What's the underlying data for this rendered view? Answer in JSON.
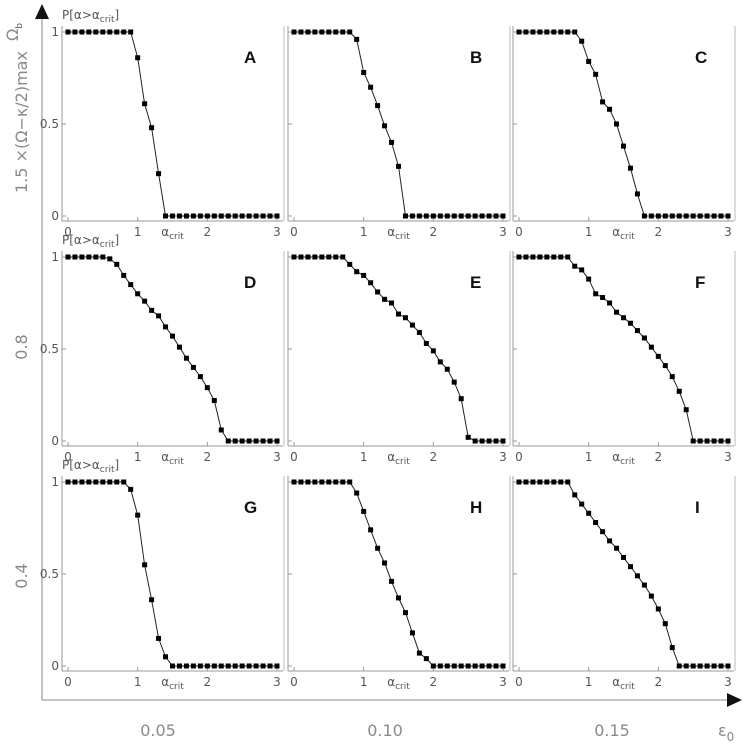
{
  "figure": {
    "outer_x_label": "ε",
    "outer_x_sub": "0",
    "outer_y_label": "Ω",
    "outer_y_sub": "b",
    "outer_x_ticks": [
      "0.05",
      "0.10",
      "0.15"
    ],
    "outer_y_ticks": [
      "1.5 ×(Ω−κ/2)max",
      "0.8",
      "0.4"
    ],
    "panel_x_label": "α",
    "panel_x_sub": "crit",
    "panel_y_label": "P[α>α",
    "panel_y_sub": "crit",
    "panel_y_close": "]",
    "panel_x_ticks": [
      "0",
      "1",
      "2",
      "3"
    ],
    "panel_y_ticks": [
      "0",
      "0.5",
      "1"
    ]
  },
  "chart_data": [
    {
      "type": "line",
      "panel": "A",
      "x": [
        0,
        0.1,
        0.2,
        0.3,
        0.4,
        0.5,
        0.6,
        0.7,
        0.8,
        0.9,
        1.0,
        1.1,
        1.2,
        1.3,
        1.4,
        1.5,
        1.6,
        1.7,
        1.8,
        1.9,
        2.0,
        2.1,
        2.2,
        2.3,
        2.4,
        2.5,
        2.6,
        2.7,
        2.8,
        2.9,
        3.0
      ],
      "y": [
        1,
        1,
        1,
        1,
        1,
        1,
        1,
        1,
        1,
        1,
        0.86,
        0.61,
        0.48,
        0.23,
        0,
        0,
        0,
        0,
        0,
        0,
        0,
        0,
        0,
        0,
        0,
        0,
        0,
        0,
        0,
        0,
        0
      ],
      "xlim": [
        0,
        3
      ],
      "ylim": [
        0,
        1
      ],
      "xlabel": "α_crit",
      "ylabel": "P[α>α_crit]",
      "outer_y_value": "1.5 ×(Ω−κ/2)max",
      "outer_x_value": "0.05"
    },
    {
      "type": "line",
      "panel": "B",
      "x": [
        0,
        0.1,
        0.2,
        0.3,
        0.4,
        0.5,
        0.6,
        0.7,
        0.8,
        0.9,
        1.0,
        1.1,
        1.2,
        1.3,
        1.4,
        1.5,
        1.6,
        1.7,
        1.8,
        1.9,
        2.0,
        2.1,
        2.2,
        2.3,
        2.4,
        2.5,
        2.6,
        2.7,
        2.8,
        2.9,
        3.0
      ],
      "y": [
        1,
        1,
        1,
        1,
        1,
        1,
        1,
        1,
        1,
        0.96,
        0.78,
        0.7,
        0.6,
        0.49,
        0.4,
        0.27,
        0,
        0,
        0,
        0,
        0,
        0,
        0,
        0,
        0,
        0,
        0,
        0,
        0,
        0,
        0
      ],
      "xlim": [
        0,
        3
      ],
      "ylim": [
        0,
        1
      ],
      "xlabel": "α_crit",
      "outer_x_value": "0.10"
    },
    {
      "type": "line",
      "panel": "C",
      "x": [
        0,
        0.1,
        0.2,
        0.3,
        0.4,
        0.5,
        0.6,
        0.7,
        0.8,
        0.9,
        1.0,
        1.1,
        1.2,
        1.3,
        1.4,
        1.5,
        1.6,
        1.7,
        1.8,
        1.9,
        2.0,
        2.1,
        2.2,
        2.3,
        2.4,
        2.5,
        2.6,
        2.7,
        2.8,
        2.9,
        3.0
      ],
      "y": [
        1,
        1,
        1,
        1,
        1,
        1,
        1,
        1,
        1,
        0.95,
        0.84,
        0.77,
        0.62,
        0.58,
        0.5,
        0.38,
        0.26,
        0.12,
        0,
        0,
        0,
        0,
        0,
        0,
        0,
        0,
        0,
        0,
        0,
        0,
        0
      ],
      "xlim": [
        0,
        3
      ],
      "ylim": [
        0,
        1
      ],
      "xlabel": "α_crit",
      "outer_x_value": "0.15"
    },
    {
      "type": "line",
      "panel": "D",
      "x": [
        0,
        0.1,
        0.2,
        0.3,
        0.4,
        0.5,
        0.6,
        0.7,
        0.8,
        0.9,
        1.0,
        1.1,
        1.2,
        1.3,
        1.4,
        1.5,
        1.6,
        1.7,
        1.8,
        1.9,
        2.0,
        2.1,
        2.2,
        2.3,
        2.4,
        2.5,
        2.6,
        2.7,
        2.8,
        2.9,
        3.0
      ],
      "y": [
        1,
        1,
        1,
        1,
        1,
        1,
        0.99,
        0.96,
        0.9,
        0.85,
        0.8,
        0.76,
        0.71,
        0.68,
        0.62,
        0.57,
        0.51,
        0.45,
        0.4,
        0.35,
        0.29,
        0.22,
        0.06,
        0,
        0,
        0,
        0,
        0,
        0,
        0,
        0
      ],
      "xlim": [
        0,
        3
      ],
      "ylim": [
        0,
        1
      ],
      "xlabel": "α_crit",
      "ylabel": "P[α>α_crit]",
      "outer_y_value": "0.8"
    },
    {
      "type": "line",
      "panel": "E",
      "x": [
        0,
        0.1,
        0.2,
        0.3,
        0.4,
        0.5,
        0.6,
        0.7,
        0.8,
        0.9,
        1.0,
        1.1,
        1.2,
        1.3,
        1.4,
        1.5,
        1.6,
        1.7,
        1.8,
        1.9,
        2.0,
        2.1,
        2.2,
        2.3,
        2.4,
        2.5,
        2.6,
        2.7,
        2.8,
        2.9,
        3.0
      ],
      "y": [
        1,
        1,
        1,
        1,
        1,
        1,
        1,
        1,
        0.96,
        0.92,
        0.9,
        0.86,
        0.81,
        0.77,
        0.75,
        0.69,
        0.67,
        0.63,
        0.59,
        0.53,
        0.49,
        0.43,
        0.39,
        0.32,
        0.23,
        0.02,
        0,
        0,
        0,
        0,
        0
      ],
      "xlim": [
        0,
        3
      ],
      "ylim": [
        0,
        1
      ],
      "xlabel": "α_crit"
    },
    {
      "type": "line",
      "panel": "F",
      "x": [
        0,
        0.1,
        0.2,
        0.3,
        0.4,
        0.5,
        0.6,
        0.7,
        0.8,
        0.9,
        1.0,
        1.1,
        1.2,
        1.3,
        1.4,
        1.5,
        1.6,
        1.7,
        1.8,
        1.9,
        2.0,
        2.1,
        2.2,
        2.3,
        2.4,
        2.5,
        2.6,
        2.7,
        2.8,
        2.9,
        3.0
      ],
      "y": [
        1,
        1,
        1,
        1,
        1,
        1,
        1,
        1,
        0.95,
        0.93,
        0.88,
        0.8,
        0.78,
        0.75,
        0.7,
        0.67,
        0.64,
        0.6,
        0.56,
        0.51,
        0.46,
        0.41,
        0.35,
        0.27,
        0.17,
        0,
        0,
        0,
        0,
        0,
        0
      ],
      "xlim": [
        0,
        3
      ],
      "ylim": [
        0,
        1
      ],
      "xlabel": "α_crit"
    },
    {
      "type": "line",
      "panel": "G",
      "x": [
        0,
        0.1,
        0.2,
        0.3,
        0.4,
        0.5,
        0.6,
        0.7,
        0.8,
        0.9,
        1.0,
        1.1,
        1.2,
        1.3,
        1.4,
        1.5,
        1.6,
        1.7,
        1.8,
        1.9,
        2.0,
        2.1,
        2.2,
        2.3,
        2.4,
        2.5,
        2.6,
        2.7,
        2.8,
        2.9,
        3.0
      ],
      "y": [
        1,
        1,
        1,
        1,
        1,
        1,
        1,
        1,
        1,
        0.96,
        0.82,
        0.55,
        0.36,
        0.15,
        0.05,
        0,
        0,
        0,
        0,
        0,
        0,
        0,
        0,
        0,
        0,
        0,
        0,
        0,
        0,
        0,
        0
      ],
      "xlim": [
        0,
        3
      ],
      "ylim": [
        0,
        1
      ],
      "xlabel": "α_crit",
      "ylabel": "P[α>α_crit]",
      "outer_y_value": "0.4"
    },
    {
      "type": "line",
      "panel": "H",
      "x": [
        0,
        0.1,
        0.2,
        0.3,
        0.4,
        0.5,
        0.6,
        0.7,
        0.8,
        0.9,
        1.0,
        1.1,
        1.2,
        1.3,
        1.4,
        1.5,
        1.6,
        1.7,
        1.8,
        1.9,
        2.0,
        2.1,
        2.2,
        2.3,
        2.4,
        2.5,
        2.6,
        2.7,
        2.8,
        2.9,
        3.0
      ],
      "y": [
        1,
        1,
        1,
        1,
        1,
        1,
        1,
        1,
        1,
        0.94,
        0.84,
        0.74,
        0.64,
        0.56,
        0.46,
        0.37,
        0.29,
        0.18,
        0.07,
        0.04,
        0,
        0,
        0,
        0,
        0,
        0,
        0,
        0,
        0,
        0,
        0
      ],
      "xlim": [
        0,
        3
      ],
      "ylim": [
        0,
        1
      ],
      "xlabel": "α_crit"
    },
    {
      "type": "line",
      "panel": "I",
      "x": [
        0,
        0.1,
        0.2,
        0.3,
        0.4,
        0.5,
        0.6,
        0.7,
        0.8,
        0.9,
        1.0,
        1.1,
        1.2,
        1.3,
        1.4,
        1.5,
        1.6,
        1.7,
        1.8,
        1.9,
        2.0,
        2.1,
        2.2,
        2.3,
        2.4,
        2.5,
        2.6,
        2.7,
        2.8,
        2.9,
        3.0
      ],
      "y": [
        1,
        1,
        1,
        1,
        1,
        1,
        1,
        1,
        0.93,
        0.88,
        0.83,
        0.78,
        0.73,
        0.68,
        0.64,
        0.59,
        0.54,
        0.49,
        0.44,
        0.38,
        0.31,
        0.23,
        0.1,
        0,
        0,
        0,
        0,
        0,
        0,
        0,
        0
      ],
      "xlim": [
        0,
        3
      ],
      "ylim": [
        0,
        1
      ],
      "xlabel": "α_crit"
    }
  ]
}
